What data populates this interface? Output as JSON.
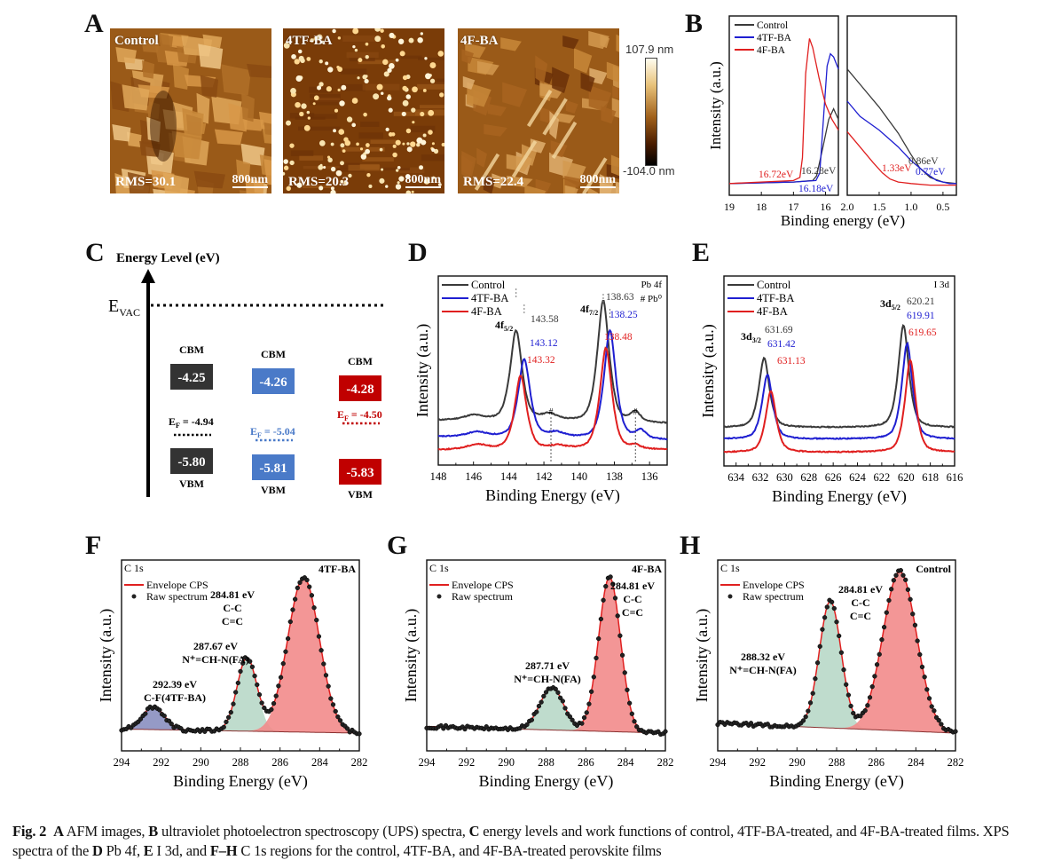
{
  "panels": {
    "A": {
      "letter": "A",
      "images": [
        {
          "label": "Control",
          "rms": "RMS=30.1",
          "scale_bar": "800nm",
          "style": "grains"
        },
        {
          "label": "4TF-BA",
          "rms": "RMS=20.3",
          "scale_bar": "800nm",
          "style": "dots"
        },
        {
          "label": "4F-BA",
          "rms": "RMS=22.4",
          "scale_bar": "800nm",
          "style": "plates"
        }
      ],
      "colorbar": {
        "max": "107.9 nm",
        "min": "-104.0 nm"
      }
    },
    "B": {
      "letter": "B"
    },
    "C": {
      "letter": "C"
    },
    "D": {
      "letter": "D"
    },
    "E": {
      "letter": "E"
    },
    "F": {
      "letter": "F"
    },
    "G": {
      "letter": "G"
    },
    "H": {
      "letter": "H"
    }
  },
  "colors": {
    "control": "#3a3a3a",
    "tfba": "#1f1fd1",
    "fba": "#e01f1f",
    "c_black": "#333333",
    "c_blue": "#4a7ac8",
    "c_red": "#c00000",
    "fill_red": "#f28b8b",
    "fill_green": "#b8d8c8",
    "fill_purple": "#8a8fc0"
  },
  "chart_data": [
    {
      "id": "B-left",
      "type": "line",
      "xlabel": "Binding energy (eV)",
      "ylabel": "Intensity (a.u.)",
      "xlim": [
        19,
        15.6
      ],
      "xticks": [
        19,
        18,
        17,
        16
      ],
      "legend": {
        "position": "top-left",
        "entries": [
          "Control",
          "4TF-BA",
          "4F-BA"
        ]
      },
      "series": [
        {
          "name": "Control",
          "color_key": "control",
          "x": [
            19,
            17,
            16.4,
            16.28,
            16.1,
            15.9,
            15.75,
            15.6
          ],
          "y": [
            0.03,
            0.04,
            0.05,
            0.08,
            0.25,
            0.45,
            0.52,
            0.45
          ]
        },
        {
          "name": "4TF-BA",
          "color_key": "tfba",
          "x": [
            19,
            17,
            16.3,
            16.18,
            16.05,
            15.95,
            15.85,
            15.75,
            15.6
          ],
          "y": [
            0.03,
            0.04,
            0.05,
            0.1,
            0.5,
            0.8,
            0.88,
            0.86,
            0.78
          ]
        },
        {
          "name": "4F-BA",
          "color_key": "fba",
          "x": [
            19,
            17,
            16.8,
            16.72,
            16.62,
            16.5,
            16.4,
            16.2,
            16.0,
            15.8,
            15.6
          ],
          "y": [
            0.03,
            0.05,
            0.07,
            0.2,
            0.75,
            0.98,
            0.92,
            0.72,
            0.55,
            0.45,
            0.38
          ]
        }
      ],
      "annotations": [
        {
          "text": "16.72eV",
          "x": 16.72,
          "color_key": "fba"
        },
        {
          "text": "16.28eV",
          "x": 16.28,
          "color_key": "control"
        },
        {
          "text": "16.18eV",
          "x": 16.18,
          "color_key": "tfba"
        }
      ]
    },
    {
      "id": "B-right",
      "type": "line",
      "xlabel": "Binding energy (eV)",
      "xlim": [
        2.0,
        0.29
      ],
      "xticks": [
        2.0,
        1.5,
        1.0,
        0.5
      ],
      "series": [
        {
          "name": "Control",
          "color_key": "control",
          "x": [
            2.0,
            1.8,
            1.5,
            1.2,
            1.0,
            0.86,
            0.7,
            0.5,
            0.29
          ],
          "y": [
            0.78,
            0.68,
            0.53,
            0.36,
            0.22,
            0.13,
            0.07,
            0.04,
            0.03
          ]
        },
        {
          "name": "4TF-BA",
          "color_key": "tfba",
          "x": [
            2.0,
            1.8,
            1.5,
            1.2,
            1.0,
            0.77,
            0.6,
            0.4,
            0.29
          ],
          "y": [
            0.57,
            0.47,
            0.38,
            0.27,
            0.18,
            0.1,
            0.05,
            0.03,
            0.03
          ]
        },
        {
          "name": "4F-BA",
          "color_key": "fba",
          "x": [
            2.0,
            1.8,
            1.6,
            1.45,
            1.33,
            1.2,
            1.0,
            0.7,
            0.29
          ],
          "y": [
            0.37,
            0.27,
            0.17,
            0.1,
            0.06,
            0.04,
            0.03,
            0.02,
            0.02
          ]
        }
      ],
      "annotations": [
        {
          "text": "0.86eV",
          "x": 0.86,
          "color_key": "control"
        },
        {
          "text": "1.33eV",
          "x": 1.33,
          "color_key": "fba"
        },
        {
          "text": "0.77eV",
          "x": 0.77,
          "color_key": "tfba"
        }
      ]
    },
    {
      "id": "C",
      "type": "diagram",
      "title": "Energy Level (eV)",
      "vacuum_label": "E",
      "vacuum_sub": "VAC",
      "columns": [
        {
          "name": "Control",
          "cbm": -4.25,
          "vbm": -5.8,
          "ef": -4.94,
          "color_key": "c_black",
          "cbm_label": "CBM",
          "vbm_label": "VBM",
          "ef_text": "= -4.94"
        },
        {
          "name": "4TF-BA",
          "cbm": -4.26,
          "vbm": -5.81,
          "ef": -5.04,
          "color_key": "c_blue",
          "cbm_label": "CBM",
          "vbm_label": "VBM",
          "ef_text": "= -5.04"
        },
        {
          "name": "4F-BA",
          "cbm": -4.28,
          "vbm": -5.83,
          "ef": -4.5,
          "color_key": "c_red",
          "cbm_label": "CBM",
          "vbm_label": "VBM",
          "ef_text": "= -4.50"
        }
      ]
    },
    {
      "id": "D",
      "type": "line",
      "xlabel": "Binding Energy (eV)",
      "ylabel": "Intensity (a.u.)",
      "xlim": [
        148,
        135
      ],
      "xticks": [
        148,
        146,
        144,
        142,
        140,
        138,
        136
      ],
      "corner_labels": [
        "Pb 4f",
        "# Pb⁰"
      ],
      "legend": {
        "position": "top-left",
        "entries": [
          "Control",
          "4TF-BA",
          "4F-BA"
        ]
      },
      "series": [
        {
          "name": "Control",
          "color_key": "control",
          "offset": 0.22,
          "peaks": [
            [
              146.0,
              0.03,
              0.6
            ],
            [
              143.58,
              0.55,
              0.35
            ],
            [
              141.7,
              0.04,
              0.5
            ],
            [
              138.63,
              0.74,
              0.35
            ],
            [
              136.8,
              0.06,
              0.3
            ]
          ],
          "base": 0.02
        },
        {
          "name": "4TF-BA",
          "color_key": "tfba",
          "offset": 0.12,
          "peaks": [
            [
              145.8,
              0.03,
              0.6
            ],
            [
              143.12,
              0.48,
              0.35
            ],
            [
              141.3,
              0.03,
              0.5
            ],
            [
              138.25,
              0.66,
              0.35
            ],
            [
              136.5,
              0.05,
              0.3
            ]
          ],
          "base": 0.02
        },
        {
          "name": "4F-BA",
          "color_key": "fba",
          "offset": 0.06,
          "peaks": [
            [
              145.8,
              0.03,
              0.6
            ],
            [
              143.32,
              0.45,
              0.35
            ],
            [
              141.2,
              0.02,
              0.5
            ],
            [
              138.48,
              0.62,
              0.35
            ],
            [
              136.8,
              0.02,
              0.3
            ]
          ],
          "base": 0.0
        }
      ],
      "annotations": [
        {
          "text": "143.58",
          "color_key": "control"
        },
        {
          "text": "143.12",
          "color_key": "tfba"
        },
        {
          "text": "143.32",
          "color_key": "fba"
        },
        {
          "text": "138.63",
          "color_key": "control"
        },
        {
          "text": "138.25",
          "color_key": "tfba"
        },
        {
          "text": "138.48",
          "color_key": "fba"
        }
      ],
      "peak_labels": [
        {
          "main": "4f",
          "sub": "5/2"
        },
        {
          "main": "4f",
          "sub": "7/2"
        }
      ],
      "pb0_markers": [
        141.6,
        136.8
      ],
      "pb0_symbol": "#"
    },
    {
      "id": "E",
      "type": "line",
      "xlabel": "Binding Energy (eV)",
      "ylabel": "Intensity (a.u.)",
      "xlim": [
        635,
        616
      ],
      "xticks": [
        634,
        632,
        630,
        628,
        626,
        624,
        622,
        620,
        618,
        616
      ],
      "corner_labels": [
        "I 3d"
      ],
      "legend": {
        "position": "top-left",
        "entries": [
          "Control",
          "4TF-BA",
          "4F-BA"
        ]
      },
      "series": [
        {
          "name": "Control",
          "color_key": "control",
          "offset": 0.2,
          "peaks": [
            [
              631.69,
              0.42,
              0.45
            ],
            [
              620.21,
              0.62,
              0.45
            ]
          ],
          "base": 0.0
        },
        {
          "name": "4TF-BA",
          "color_key": "tfba",
          "offset": 0.13,
          "peaks": [
            [
              631.42,
              0.39,
              0.45
            ],
            [
              619.91,
              0.58,
              0.45
            ]
          ],
          "base": 0.0
        },
        {
          "name": "4F-BA",
          "color_key": "fba",
          "offset": 0.05,
          "peaks": [
            [
              631.13,
              0.37,
              0.45
            ],
            [
              619.65,
              0.56,
              0.45
            ]
          ],
          "base": 0.0
        }
      ],
      "annotations": [
        {
          "text": "631.69",
          "color_key": "control"
        },
        {
          "text": "631.42",
          "color_key": "tfba"
        },
        {
          "text": "631.13",
          "color_key": "fba"
        },
        {
          "text": "620.21",
          "color_key": "control"
        },
        {
          "text": "619.91",
          "color_key": "tfba"
        },
        {
          "text": "619.65",
          "color_key": "fba"
        }
      ],
      "peak_labels": [
        {
          "main": "3d",
          "sub": "3/2"
        },
        {
          "main": "3d",
          "sub": "5/2"
        }
      ]
    },
    {
      "id": "F",
      "type": "line",
      "title_corner": "C 1s",
      "sample": "4TF-BA",
      "xlabel": "Binding Energy (eV)",
      "ylabel": "Intensity (a.u.)",
      "xlim": [
        294,
        282
      ],
      "xticks": [
        294,
        292,
        290,
        288,
        286,
        284,
        282
      ],
      "legend": {
        "entries": [
          "Envelope CPS",
          "Raw spectrum"
        ]
      },
      "components": [
        {
          "center": 292.39,
          "height": 0.14,
          "width": 0.55,
          "fill_key": "fill_purple",
          "label": [
            "292.39 eV",
            "C-F(4TF-BA)"
          ]
        },
        {
          "center": 287.67,
          "height": 0.45,
          "width": 0.5,
          "fill_key": "fill_green",
          "label": [
            "287.67 eV",
            "N⁺=CH-N(FA)"
          ]
        },
        {
          "center": 284.81,
          "height": 0.95,
          "width": 0.8,
          "fill_key": "fill_red",
          "label": [
            "284.81 eV",
            "C-C",
            "C=C"
          ]
        }
      ],
      "baseline": 0.05
    },
    {
      "id": "G",
      "type": "line",
      "title_corner": "C 1s",
      "sample": "4F-BA",
      "xlabel": "Binding Energy (eV)",
      "ylabel": "Intensity (a.u.)",
      "xlim": [
        294,
        282
      ],
      "xticks": [
        294,
        292,
        290,
        288,
        286,
        284,
        282
      ],
      "legend": {
        "entries": [
          "Envelope CPS",
          "Raw spectrum"
        ]
      },
      "components": [
        {
          "center": 287.71,
          "height": 0.26,
          "width": 0.6,
          "fill_key": "fill_green",
          "label": [
            "287.71 eV",
            "N⁺=CH-N(FA)"
          ]
        },
        {
          "center": 284.81,
          "height": 0.95,
          "width": 0.55,
          "fill_key": "fill_red",
          "label": [
            "284.81 eV",
            "C-C",
            "C=C"
          ]
        }
      ],
      "baseline": 0.08
    },
    {
      "id": "H",
      "type": "line",
      "title_corner": "C 1s",
      "sample": "Control",
      "xlabel": "Binding Energy (eV)",
      "ylabel": "Intensity (a.u.)",
      "xlim": [
        294,
        282
      ],
      "xticks": [
        294,
        292,
        290,
        288,
        286,
        284,
        282
      ],
      "legend": {
        "entries": [
          "Envelope CPS",
          "Raw spectrum"
        ]
      },
      "components": [
        {
          "center": 288.32,
          "height": 0.78,
          "width": 0.55,
          "fill_key": "fill_green",
          "label": [
            "288.32 eV",
            "N⁺=CH-N(FA)"
          ]
        },
        {
          "center": 284.81,
          "height": 0.98,
          "width": 0.85,
          "fill_key": "fill_red",
          "label": [
            "284.81 eV",
            "C-C",
            "C=C"
          ]
        }
      ],
      "baseline": 0.12
    }
  ],
  "caption": {
    "fig": "Fig. 2",
    "parts": [
      {
        "b": "A",
        "t": " AFM images, "
      },
      {
        "b": "B",
        "t": " ultraviolet photoelectron spectroscopy (UPS) spectra, "
      },
      {
        "b": "C",
        "t": " energy levels and work functions of control, 4TF-BA-treated, and 4F-BA-treated films. XPS spectra of the "
      },
      {
        "b": "D",
        "t": " Pb 4f, "
      },
      {
        "b": "E",
        "t": " I 3d, and "
      },
      {
        "b": "F–H",
        "t": " C 1s regions for the control, 4TF-BA, and 4F-BA-treated perovskite films"
      }
    ]
  }
}
